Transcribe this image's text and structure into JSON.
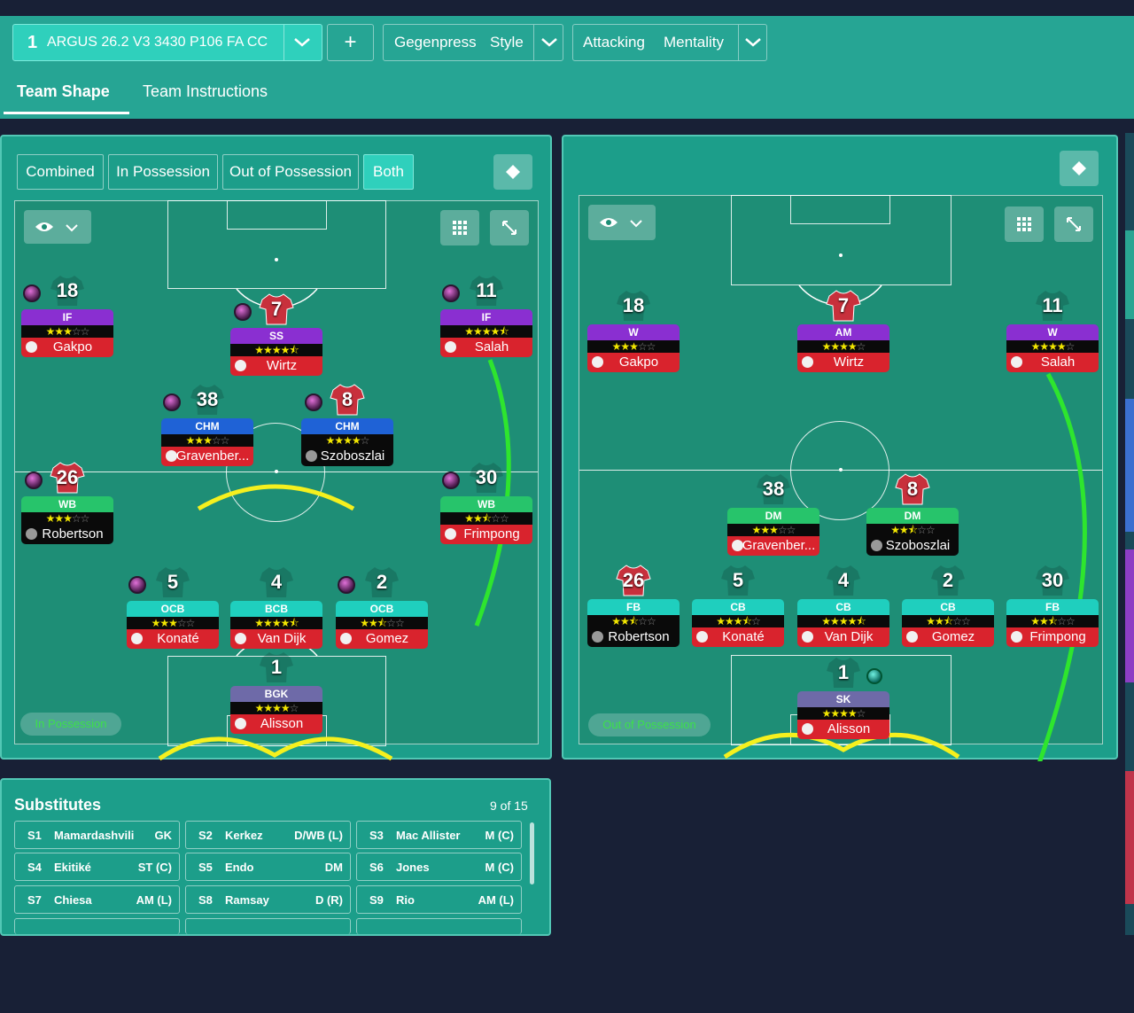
{
  "header": {
    "tactic_number": "1",
    "tactic_name": "ARGUS 26.2 V3 3430 P106 FA CC",
    "add_label": "+",
    "style_value": "Gegenpress",
    "style_label": "Style",
    "mentality_value": "Attacking",
    "mentality_label": "Mentality",
    "tabs": [
      {
        "label": "Team Shape",
        "active": true
      },
      {
        "label": "Team Instructions",
        "active": false
      }
    ]
  },
  "left_panel": {
    "filters": [
      "Combined",
      "In Possession",
      "Out of Possession",
      "Both"
    ],
    "active_filter": "Both",
    "badge": "In Possession",
    "players": [
      {
        "num": "18",
        "pos": "IF",
        "stars": 3,
        "name": "Gakpo",
        "pos_color": "#8a2fd1",
        "name_bg": "#d9232d",
        "orb": true,
        "shirt": false
      },
      {
        "num": "7",
        "pos": "SS",
        "stars": 4.5,
        "name": "Wirtz",
        "pos_color": "#8a2fd1",
        "name_bg": "#d9232d",
        "orb": true,
        "shirt": true
      },
      {
        "num": "11",
        "pos": "IF",
        "stars": 4.5,
        "name": "Salah",
        "pos_color": "#8a2fd1",
        "name_bg": "#d9232d",
        "orb": true,
        "shirt": false
      },
      {
        "num": "38",
        "pos": "CHM",
        "stars": 3,
        "name": "Gravenber...",
        "pos_color": "#1f62d6",
        "name_bg": "#d9232d",
        "orb": true,
        "shirt": false
      },
      {
        "num": "8",
        "pos": "CHM",
        "stars": 4,
        "name": "Szoboszlai",
        "pos_color": "#1f62d6",
        "name_bg": "#0a0a0a",
        "orb": true,
        "shirt": true
      },
      {
        "num": "26",
        "pos": "WB",
        "stars": 3,
        "name": "Robertson",
        "pos_color": "#27c46b",
        "name_bg": "#0a0a0a",
        "orb": true,
        "shirt": true
      },
      {
        "num": "30",
        "pos": "WB",
        "stars": 2.5,
        "name": "Frimpong",
        "pos_color": "#27c46b",
        "name_bg": "#d9232d",
        "orb": true,
        "shirt": false
      },
      {
        "num": "5",
        "pos": "OCB",
        "stars": 3,
        "name": "Konaté",
        "pos_color": "#1fcfbe",
        "name_bg": "#d9232d",
        "orb": true,
        "shirt": false
      },
      {
        "num": "4",
        "pos": "BCB",
        "stars": 4.5,
        "name": "Van Dijk",
        "pos_color": "#1fcfbe",
        "name_bg": "#d9232d",
        "orb": false,
        "shirt": false
      },
      {
        "num": "2",
        "pos": "OCB",
        "stars": 2.5,
        "name": "Gomez",
        "pos_color": "#1fcfbe",
        "name_bg": "#d9232d",
        "orb": true,
        "shirt": false
      },
      {
        "num": "1",
        "pos": "BGK",
        "stars": 4,
        "name": "Alisson",
        "pos_color": "#6e6aa8",
        "name_bg": "#d9232d",
        "orb": false,
        "shirt": false
      }
    ]
  },
  "right_panel": {
    "badge": "Out of Possession",
    "players": [
      {
        "num": "18",
        "pos": "W",
        "stars": 3,
        "name": "Gakpo",
        "pos_color": "#8a2fd1",
        "name_bg": "#d9232d",
        "shirt": false
      },
      {
        "num": "7",
        "pos": "AM",
        "stars": 4,
        "name": "Wirtz",
        "pos_color": "#8a2fd1",
        "name_bg": "#d9232d",
        "shirt": true
      },
      {
        "num": "11",
        "pos": "W",
        "stars": 4,
        "name": "Salah",
        "pos_color": "#8a2fd1",
        "name_bg": "#d9232d",
        "shirt": false
      },
      {
        "num": "38",
        "pos": "DM",
        "stars": 3,
        "name": "Gravenber...",
        "pos_color": "#27c46b",
        "name_bg": "#d9232d",
        "shirt": false
      },
      {
        "num": "8",
        "pos": "DM",
        "stars": 2.5,
        "name": "Szoboszlai",
        "pos_color": "#27c46b",
        "name_bg": "#0a0a0a",
        "shirt": true
      },
      {
        "num": "26",
        "pos": "FB",
        "stars": 2.5,
        "name": "Robertson",
        "pos_color": "#1fcfbe",
        "name_bg": "#0a0a0a",
        "shirt": true
      },
      {
        "num": "5",
        "pos": "CB",
        "stars": 3.5,
        "name": "Konaté",
        "pos_color": "#1fcfbe",
        "name_bg": "#d9232d",
        "shirt": false
      },
      {
        "num": "4",
        "pos": "CB",
        "stars": 4.5,
        "name": "Van Dijk",
        "pos_color": "#1fcfbe",
        "name_bg": "#d9232d",
        "shirt": false
      },
      {
        "num": "2",
        "pos": "CB",
        "stars": 2.5,
        "name": "Gomez",
        "pos_color": "#1fcfbe",
        "name_bg": "#d9232d",
        "shirt": false
      },
      {
        "num": "30",
        "pos": "FB",
        "stars": 2.5,
        "name": "Frimpong",
        "pos_color": "#1fcfbe",
        "name_bg": "#d9232d",
        "shirt": false
      },
      {
        "num": "1",
        "pos": "SK",
        "stars": 4,
        "name": "Alisson",
        "pos_color": "#6e6aa8",
        "name_bg": "#d9232d",
        "shirt": false
      }
    ]
  },
  "substitutes": {
    "title": "Substitutes",
    "count": "9 of 15",
    "items": [
      {
        "slot": "S1",
        "name": "Mamardashvili",
        "pos": "GK"
      },
      {
        "slot": "S2",
        "name": "Kerkez",
        "pos": "D/WB (L)"
      },
      {
        "slot": "S3",
        "name": "Mac Allister",
        "pos": "M (C)"
      },
      {
        "slot": "S4",
        "name": "Ekitiké",
        "pos": "ST (C)"
      },
      {
        "slot": "S5",
        "name": "Endo",
        "pos": "DM"
      },
      {
        "slot": "S6",
        "name": "Jones",
        "pos": "M (C)"
      },
      {
        "slot": "S7",
        "name": "Chiesa",
        "pos": "AM (L)"
      },
      {
        "slot": "S8",
        "name": "Ramsay",
        "pos": "D (R)"
      },
      {
        "slot": "S9",
        "name": "Rio",
        "pos": "AM (L)"
      }
    ]
  },
  "icons": {
    "eye": "eye-icon",
    "chevron": "chevron-down-icon",
    "grid": "grid-icon",
    "expand": "expand-icon",
    "diamond": "diamond-icon"
  },
  "colors": {
    "panel": "#1c9e8a",
    "background": "#182036",
    "accent": "#2fd0bc",
    "yellow_arc": "#f5f01e",
    "green_arc": "#2ee52e"
  }
}
